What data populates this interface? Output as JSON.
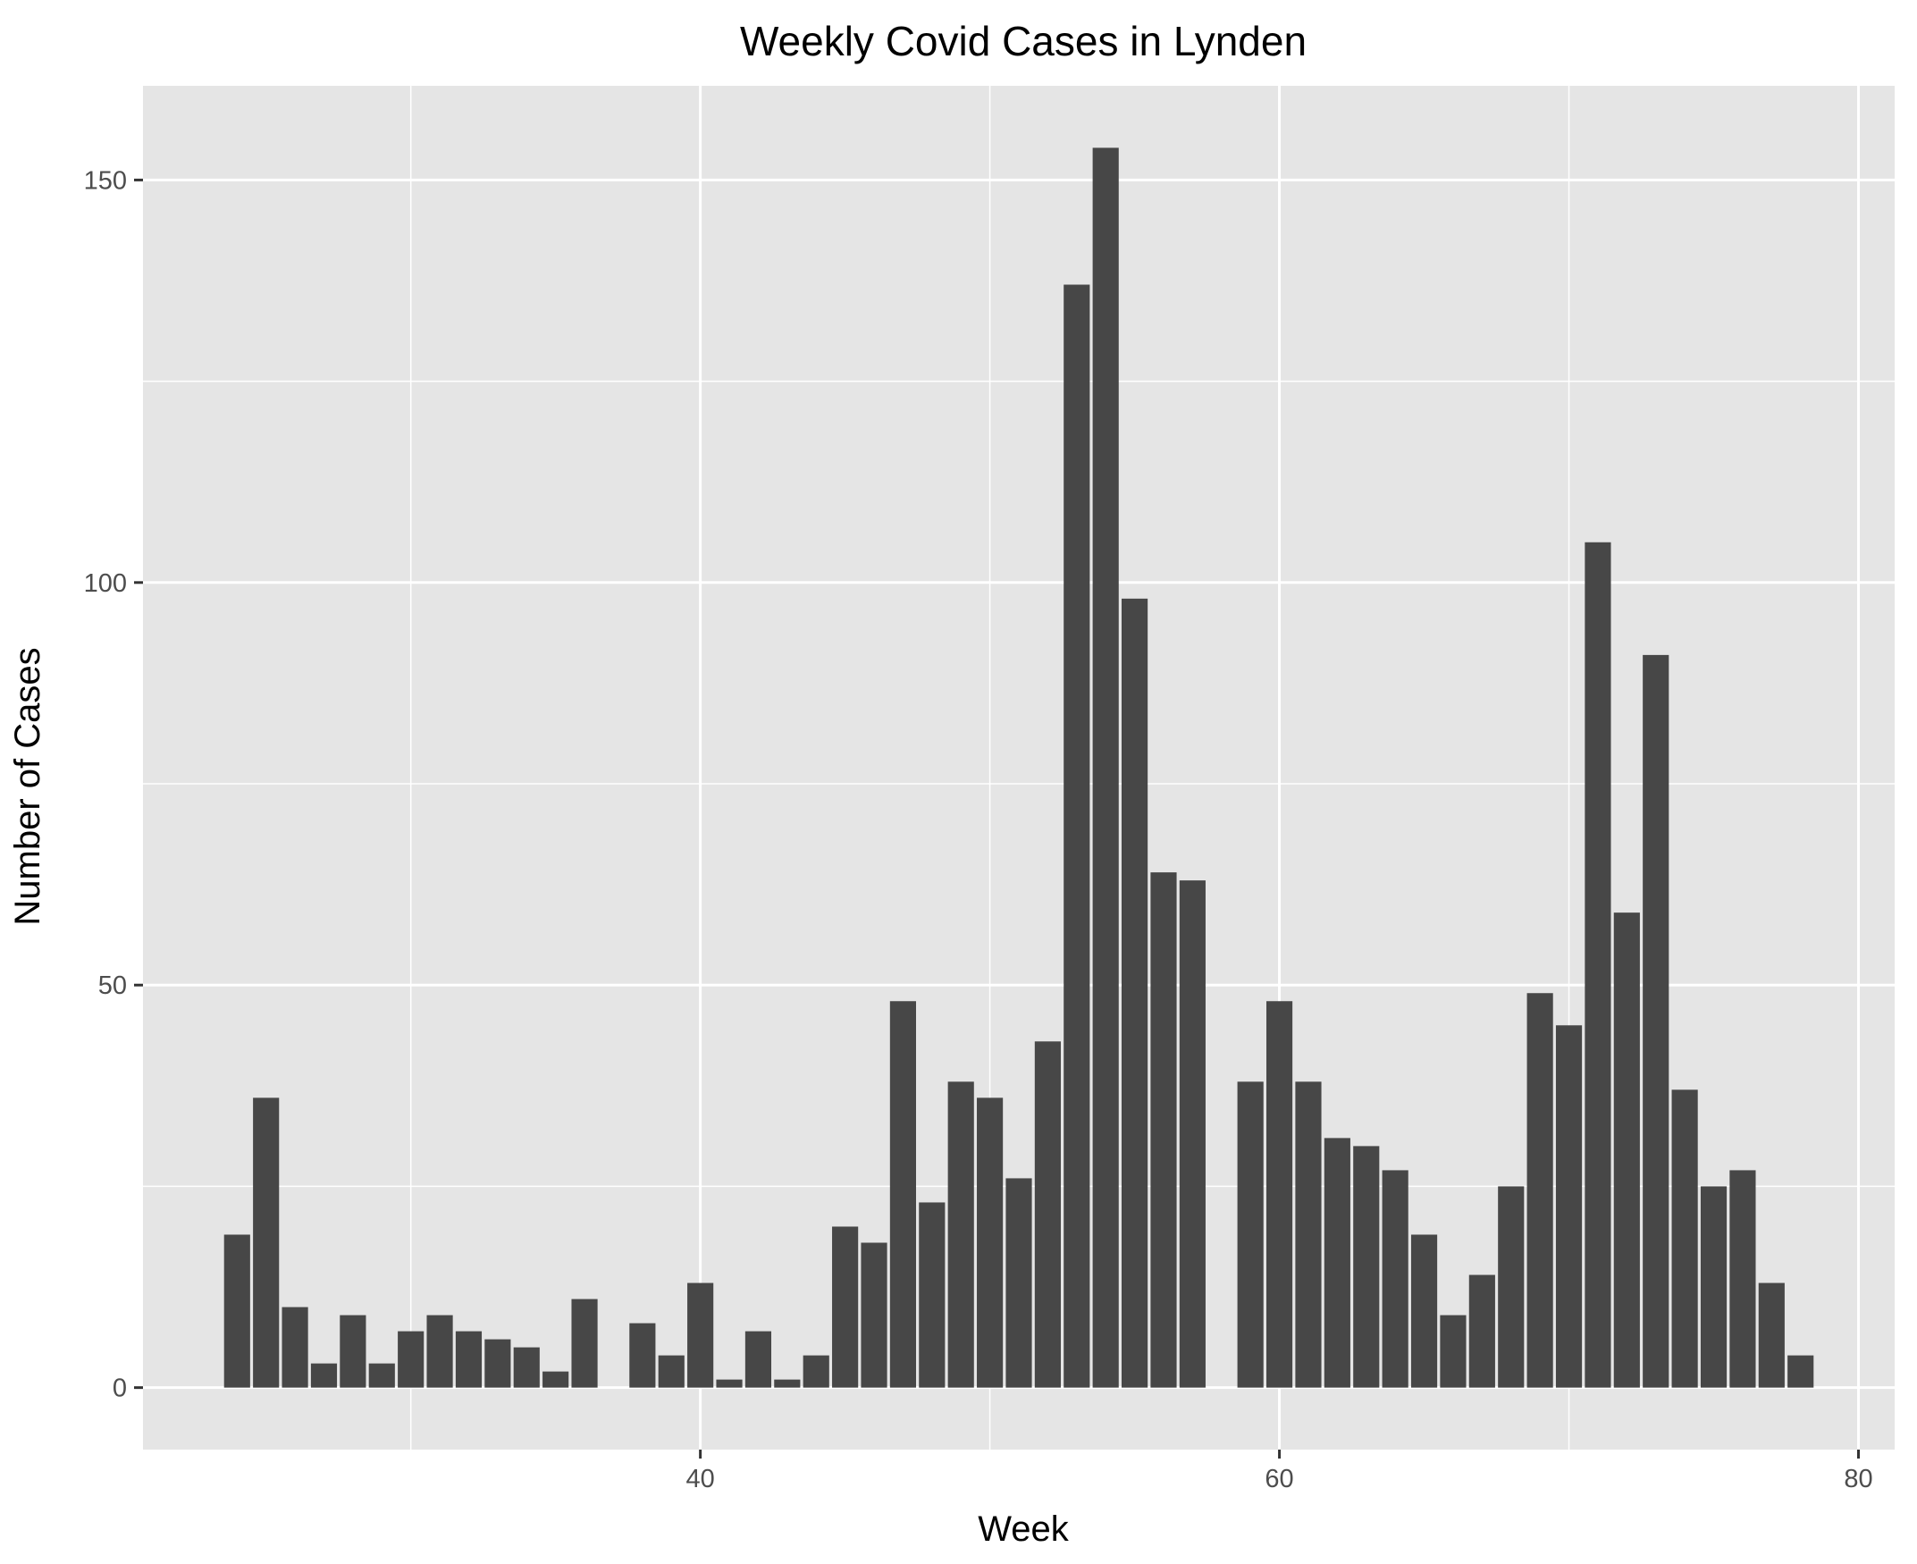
{
  "chart_data": {
    "type": "bar",
    "title": "Weekly Covid Cases in Lynden",
    "xlabel": "Week",
    "ylabel": "Number of Cases",
    "xlim": [
      20.75,
      81.25
    ],
    "ylim": [
      -7.7,
      161.7
    ],
    "x_ticks": [
      40,
      60,
      80
    ],
    "x_tick_labels": [
      "40",
      "60",
      "80"
    ],
    "x_minor_ticks": [
      30,
      50,
      70
    ],
    "y_ticks": [
      0,
      50,
      100,
      150
    ],
    "y_tick_labels": [
      "0",
      "50",
      "100",
      "150"
    ],
    "y_minor_ticks": [
      25,
      75,
      125
    ],
    "grid": true,
    "legend": "none",
    "colors": {
      "panel": "#e5e5e5",
      "grid": "#ffffff",
      "bar": "#474747",
      "tick_text": "#4d4d4d",
      "tick_mark": "#333333"
    },
    "x": [
      24,
      25,
      26,
      27,
      28,
      29,
      30,
      31,
      32,
      33,
      34,
      35,
      36,
      37,
      38,
      39,
      40,
      41,
      42,
      43,
      44,
      45,
      46,
      47,
      48,
      49,
      50,
      51,
      52,
      53,
      54,
      55,
      56,
      57,
      58,
      59,
      60,
      61,
      62,
      63,
      64,
      65,
      66,
      67,
      68,
      69,
      70,
      71,
      72,
      73,
      74,
      75,
      76,
      77,
      78,
      79
    ],
    "values": [
      19,
      36,
      10,
      3,
      9,
      3,
      7,
      9,
      7,
      6,
      5,
      2,
      11,
      0,
      8,
      4,
      13,
      1,
      7,
      1,
      4,
      20,
      18,
      48,
      23,
      38,
      36,
      26,
      43,
      137,
      154,
      98,
      64,
      63,
      0,
      38,
      48,
      38,
      31,
      30,
      27,
      19,
      9,
      14,
      25,
      49,
      45,
      105,
      59,
      91,
      37,
      25,
      27,
      13,
      4,
      0
    ]
  }
}
